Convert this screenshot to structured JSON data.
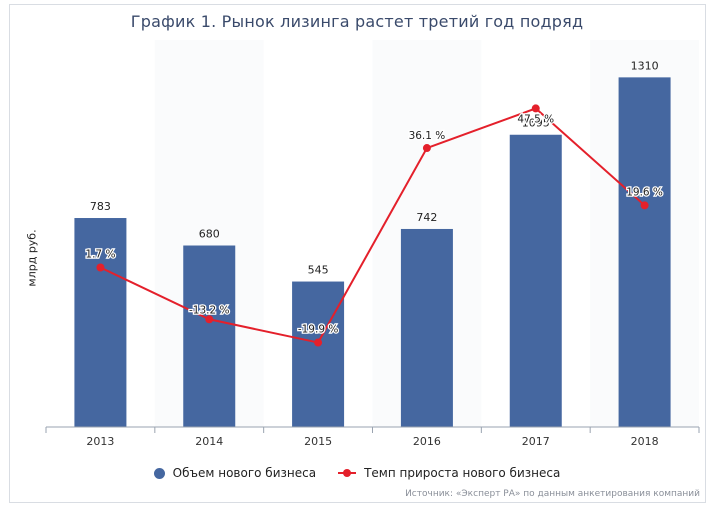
{
  "chart_data": {
    "type": "bar",
    "title": "График 1. Рынок лизинга растет третий год подряд",
    "ylabel": "млрд руб.",
    "categories": [
      "2013",
      "2014",
      "2015",
      "2016",
      "2017",
      "2018"
    ],
    "series": [
      {
        "name": "Объем нового бизнеса",
        "type": "bar",
        "values": [
          783,
          680,
          545,
          742,
          1095,
          1310
        ],
        "labels": [
          "783",
          "680",
          "545",
          "742",
          "1095",
          "1310"
        ]
      },
      {
        "name": "Темп прироста нового бизнеса",
        "type": "line",
        "values": [
          1.7,
          -13.2,
          -19.9,
          36.1,
          47.5,
          19.6
        ],
        "labels": [
          "1.7 %",
          "-13.2 %",
          "-19.9 %",
          "36.1 %",
          "47.5 %",
          "19.6 %"
        ]
      }
    ],
    "ylim_bars": [
      0,
      1450
    ],
    "ylim_line": [
      -35,
      60
    ],
    "grid": false,
    "legend_position": "bottom"
  },
  "colors": {
    "bar": "#4567a0",
    "line": "#e4202b",
    "title": "#3a4a6b"
  },
  "source": "Источник: «Эксперт РА» по данным анкетирования компаний"
}
